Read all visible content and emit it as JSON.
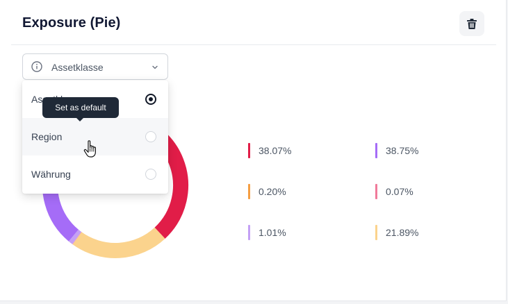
{
  "card": {
    "title": "Exposure (Pie)",
    "delete_icon": "trash-icon"
  },
  "select": {
    "info_icon": "info-icon",
    "value": "Assetklasse",
    "chevron_icon": "chevron-down-icon"
  },
  "dropdown": {
    "options": [
      {
        "label": "Assetklasse",
        "selected": true
      },
      {
        "label": "Region",
        "selected": false
      },
      {
        "label": "Währung",
        "selected": false
      }
    ],
    "tooltip": "Set as default"
  },
  "legend": [
    {
      "percent": "38.07%",
      "color": "#e11d48"
    },
    {
      "percent": "38.75%",
      "color": "#a56cf7"
    },
    {
      "percent": "0.20%",
      "color": "#f59e42"
    },
    {
      "percent": "0.07%",
      "color": "#f07a9a"
    },
    {
      "percent": "1.01%",
      "color": "#c4a0f5"
    },
    {
      "percent": "21.89%",
      "color": "#fbd38d"
    }
  ],
  "chart_data": {
    "type": "pie",
    "values": [
      38.07,
      21.89,
      0.07,
      1.01,
      38.75,
      0.2
    ],
    "colors": [
      "#e11d48",
      "#fbd38d",
      "#f07a9a",
      "#c4a0f5",
      "#a56cf7",
      "#f59e42"
    ],
    "donut": true
  }
}
